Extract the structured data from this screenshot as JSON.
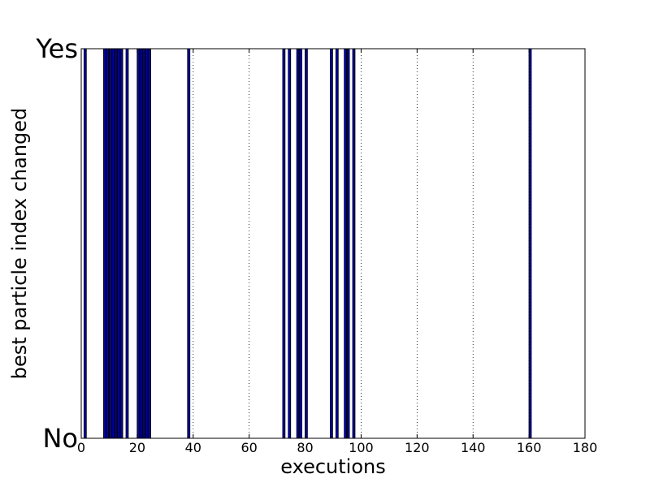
{
  "chart_data": {
    "type": "bar",
    "title": "",
    "xlabel": "executions",
    "ylabel": "best particle index changed",
    "xlim": [
      0,
      180
    ],
    "xticks": [
      0,
      20,
      40,
      60,
      80,
      100,
      120,
      140,
      160,
      180
    ],
    "y_categories": [
      "No",
      "Yes"
    ],
    "ylim": [
      0,
      1
    ],
    "grid": true,
    "x": [
      1,
      8,
      9,
      10,
      11,
      12,
      13,
      14,
      16,
      20,
      21,
      22,
      23,
      24,
      38,
      72,
      74,
      77,
      78,
      80,
      89,
      91,
      94,
      95,
      97,
      160
    ],
    "values": [
      1,
      1,
      1,
      1,
      1,
      1,
      1,
      1,
      1,
      1,
      1,
      1,
      1,
      1,
      1,
      1,
      1,
      1,
      1,
      1,
      1,
      1,
      1,
      1,
      1,
      1
    ],
    "bar_width": 0.8,
    "colors": {
      "bar_fill": "#0000bf",
      "bar_edge": "#000000",
      "grid": "#000000"
    }
  }
}
